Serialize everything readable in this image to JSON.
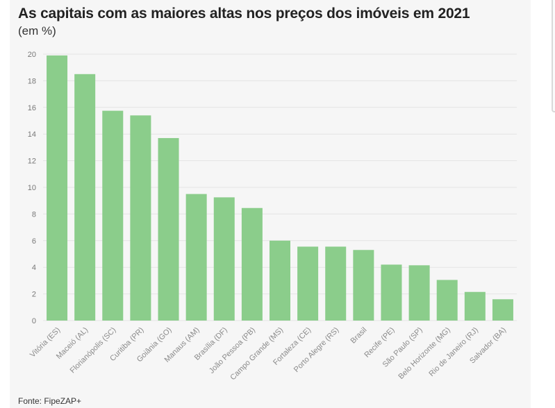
{
  "title": "As capitais com as maiores altas nos preços dos imóveis em 2021",
  "subtitle": "(em %)",
  "source": "Fonte: FipeZAP+",
  "colors": {
    "bar": "#8bcd8b",
    "grid": "#e4e4e4",
    "background": "#f6f6f6"
  },
  "chart_data": {
    "type": "bar",
    "title": "As capitais com as maiores altas nos preços dos imóveis em 2021",
    "ylabel": "(em %)",
    "xlabel": "",
    "ylim": [
      0,
      20
    ],
    "yticks": [
      0,
      2,
      4,
      6,
      8,
      10,
      12,
      14,
      16,
      18,
      20
    ],
    "grid": true,
    "categories": [
      "Vitória (ES)",
      "Maceió (AL)",
      "Florianópolis (SC)",
      "Curitiba (PR)",
      "Goiânia (GO)",
      "Manaus (AM)",
      "Brasília (DF)",
      "João Pessoa (PB)",
      "Campo Grande (MS)",
      "Fortaleza (CE)",
      "Porto Alegre (RS)",
      "Brasil",
      "Recife (PE)",
      "São Paulo (SP)",
      "Belo Horizonte (MG)",
      "Rio de Janeiro (RJ)",
      "Salvador (BA)"
    ],
    "values": [
      19.9,
      18.5,
      15.75,
      15.4,
      13.7,
      9.5,
      9.25,
      8.45,
      6.0,
      5.55,
      5.55,
      5.3,
      4.2,
      4.15,
      3.05,
      2.15,
      1.6
    ]
  }
}
